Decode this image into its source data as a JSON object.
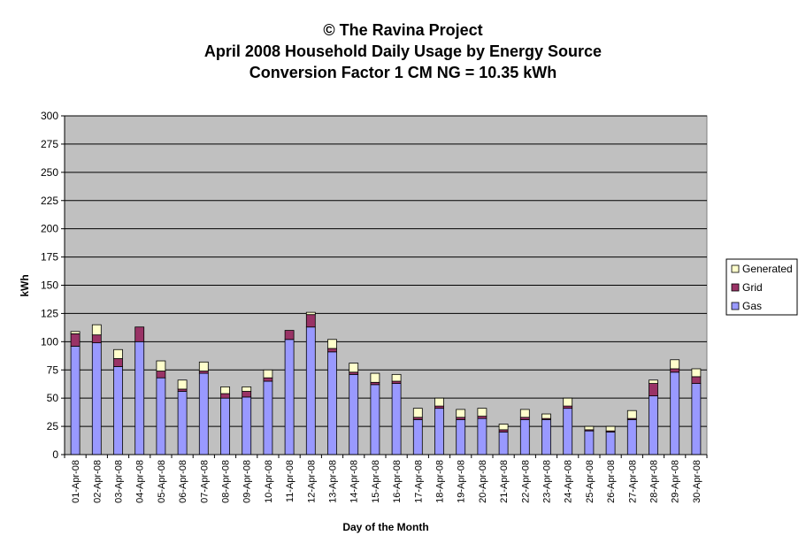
{
  "chart_data": {
    "type": "bar",
    "stacked": true,
    "title_lines": [
      "© The Ravina Project",
      "April 2008 Household Daily Usage by Energy Source",
      "Conversion Factor 1 CM NG = 10.35 kWh"
    ],
    "xlabel": "Day of the Month",
    "ylabel": "kWh",
    "ylim": [
      0,
      300
    ],
    "yticks": [
      0,
      25,
      50,
      75,
      100,
      125,
      150,
      175,
      200,
      225,
      250,
      275,
      300
    ],
    "grid": true,
    "legend_position": "right",
    "categories": [
      "01-Apr-08",
      "02-Apr-08",
      "03-Apr-08",
      "04-Apr-08",
      "05-Apr-08",
      "06-Apr-08",
      "07-Apr-08",
      "08-Apr-08",
      "09-Apr-08",
      "10-Apr-08",
      "11-Apr-08",
      "12-Apr-08",
      "13-Apr-08",
      "14-Apr-08",
      "15-Apr-08",
      "16-Apr-08",
      "17-Apr-08",
      "18-Apr-08",
      "19-Apr-08",
      "20-Apr-08",
      "21-Apr-08",
      "22-Apr-08",
      "23-Apr-08",
      "24-Apr-08",
      "25-Apr-08",
      "26-Apr-08",
      "27-Apr-08",
      "28-Apr-08",
      "29-Apr-08",
      "30-Apr-08"
    ],
    "series": [
      {
        "name": "Gas",
        "color": "#9999ff",
        "values": [
          96,
          99,
          78,
          100,
          68,
          56,
          72,
          50,
          51,
          65,
          102,
          113,
          91,
          71,
          62,
          63,
          31,
          41,
          31,
          32,
          20,
          31,
          31,
          41,
          21,
          20,
          31,
          52,
          73,
          63
        ]
      },
      {
        "name": "Grid",
        "color": "#993366",
        "values": [
          11,
          7,
          7,
          13,
          6,
          2,
          2,
          4,
          5,
          3,
          8,
          11,
          3,
          2,
          2,
          2,
          2,
          2,
          2,
          2,
          2,
          2,
          1,
          2,
          1,
          1,
          1,
          11,
          3,
          6
        ]
      },
      {
        "name": "Generated",
        "color": "#ffffcc",
        "values": [
          2,
          9,
          8,
          0,
          9,
          8,
          8,
          6,
          4,
          7,
          0,
          2,
          8,
          8,
          8,
          6,
          8,
          7,
          7,
          7,
          5,
          7,
          4,
          7,
          3,
          4,
          7,
          3,
          8,
          7
        ]
      }
    ],
    "legend_order": [
      "Generated",
      "Grid",
      "Gas"
    ]
  }
}
